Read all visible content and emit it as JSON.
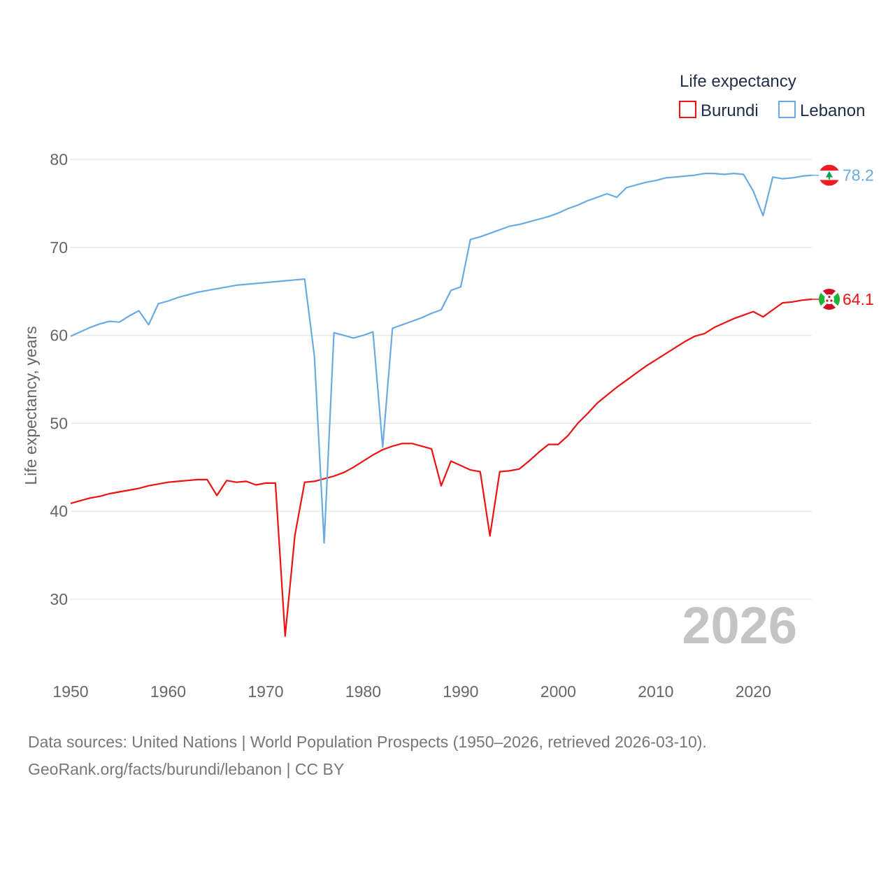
{
  "chart_data": {
    "type": "line",
    "title": "Life expectancy",
    "ylabel": "Life expectancy, years",
    "xlabel": "",
    "xlim": [
      1950,
      2026
    ],
    "ylim": [
      22,
      84
    ],
    "x_ticks": [
      "1950",
      "1960",
      "1970",
      "1980",
      "1990",
      "2000",
      "2010",
      "2020"
    ],
    "y_ticks": [
      "30",
      "40",
      "50",
      "60",
      "70",
      "80"
    ],
    "current_year": "2026",
    "legend": [
      "Burundi",
      "Lebanon"
    ],
    "series": [
      {
        "name": "Burundi",
        "color": "#ee1111",
        "end_label": "64.1",
        "flag_icon": "burundi-flag-icon",
        "x": [
          1950,
          1951,
          1952,
          1953,
          1954,
          1955,
          1956,
          1957,
          1958,
          1959,
          1960,
          1961,
          1962,
          1963,
          1964,
          1965,
          1966,
          1967,
          1968,
          1969,
          1970,
          1971,
          1972,
          1973,
          1974,
          1975,
          1976,
          1977,
          1978,
          1979,
          1980,
          1981,
          1982,
          1983,
          1984,
          1985,
          1986,
          1987,
          1988,
          1989,
          1990,
          1991,
          1992,
          1993,
          1994,
          1995,
          1996,
          1997,
          1998,
          1999,
          2000,
          2001,
          2002,
          2003,
          2004,
          2005,
          2006,
          2007,
          2008,
          2009,
          2010,
          2011,
          2012,
          2013,
          2014,
          2015,
          2016,
          2017,
          2018,
          2019,
          2020,
          2021,
          2022,
          2023,
          2024,
          2025,
          2026
        ],
        "values": [
          40.9,
          41.2,
          41.5,
          41.7,
          42.0,
          42.2,
          42.4,
          42.6,
          42.9,
          43.1,
          43.3,
          43.4,
          43.5,
          43.6,
          43.6,
          41.8,
          43.5,
          43.3,
          43.4,
          43.0,
          43.2,
          43.2,
          25.8,
          37.3,
          43.3,
          43.4,
          43.7,
          44.0,
          44.4,
          45.0,
          45.7,
          46.4,
          47.0,
          47.4,
          47.7,
          47.7,
          47.4,
          47.1,
          42.9,
          45.7,
          45.2,
          44.7,
          44.5,
          37.2,
          44.5,
          44.6,
          44.8,
          45.7,
          46.7,
          47.6,
          47.6,
          48.6,
          50.0,
          51.1,
          52.3,
          53.2,
          54.1,
          54.9,
          55.7,
          56.5,
          57.2,
          57.9,
          58.6,
          59.3,
          59.9,
          60.2,
          60.9,
          61.4,
          61.9,
          62.3,
          62.7,
          62.1,
          62.9,
          63.7,
          63.8,
          64.0,
          64.1
        ]
      },
      {
        "name": "Lebanon",
        "color": "#6aaae4",
        "end_label": "78.2",
        "flag_icon": "lebanon-flag-icon",
        "x": [
          1950,
          1951,
          1952,
          1953,
          1954,
          1955,
          1956,
          1957,
          1958,
          1959,
          1960,
          1961,
          1962,
          1963,
          1964,
          1965,
          1966,
          1967,
          1968,
          1969,
          1970,
          1971,
          1972,
          1973,
          1974,
          1975,
          1976,
          1977,
          1978,
          1979,
          1980,
          1981,
          1982,
          1983,
          1984,
          1985,
          1986,
          1987,
          1988,
          1989,
          1990,
          1991,
          1992,
          1993,
          1994,
          1995,
          1996,
          1997,
          1998,
          1999,
          2000,
          2001,
          2002,
          2003,
          2004,
          2005,
          2006,
          2007,
          2008,
          2009,
          2010,
          2011,
          2012,
          2013,
          2014,
          2015,
          2016,
          2017,
          2018,
          2019,
          2020,
          2021,
          2022,
          2023,
          2024,
          2025,
          2026
        ],
        "values": [
          59.9,
          60.4,
          60.9,
          61.3,
          61.6,
          61.5,
          62.2,
          62.8,
          61.2,
          63.6,
          63.9,
          64.3,
          64.6,
          64.9,
          65.1,
          65.3,
          65.5,
          65.7,
          65.8,
          65.9,
          66.0,
          66.1,
          66.2,
          66.3,
          66.4,
          57.6,
          36.4,
          60.3,
          60.0,
          59.7,
          60.0,
          60.4,
          47.3,
          60.8,
          61.2,
          61.6,
          62.0,
          62.5,
          62.9,
          65.1,
          65.5,
          70.9,
          71.2,
          71.6,
          72.0,
          72.4,
          72.6,
          72.9,
          73.2,
          73.5,
          73.9,
          74.4,
          74.8,
          75.3,
          75.7,
          76.1,
          75.7,
          76.8,
          77.1,
          77.4,
          77.6,
          77.9,
          78.0,
          78.1,
          78.2,
          78.4,
          78.4,
          78.3,
          78.4,
          78.3,
          76.4,
          73.6,
          78.0,
          77.8,
          77.9,
          78.1,
          78.2
        ]
      }
    ]
  },
  "footer": {
    "line1": "Data sources: United Nations | World Population Prospects (1950–2026, retrieved 2026-03-10).",
    "line2": "GeoRank.org/facts/burundi/lebanon | CC BY"
  }
}
